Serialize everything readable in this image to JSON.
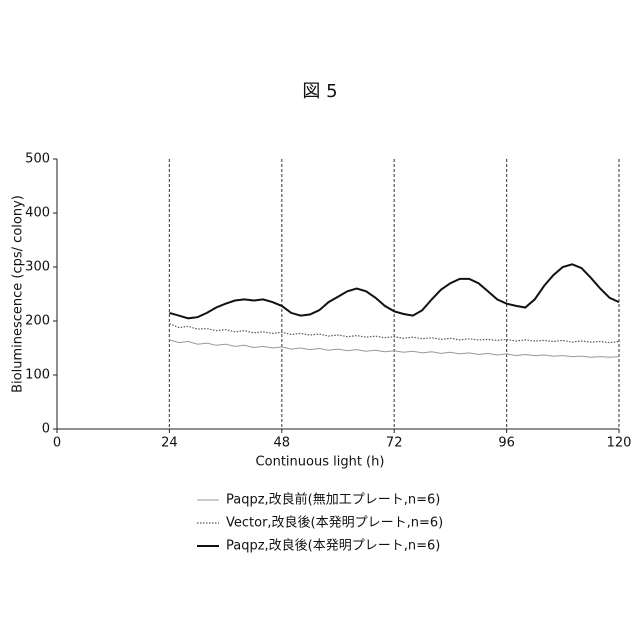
{
  "chart_data": {
    "type": "line",
    "title": "図 5",
    "x_label": "Continuous light (h)",
    "y_label": "Bioluminescence (cps/ colony)",
    "xlim": [
      0,
      120
    ],
    "xticks": [
      0,
      24,
      48,
      72,
      96,
      120
    ],
    "ylim": [
      0,
      500
    ],
    "yticks": [
      0,
      100,
      200,
      300,
      400,
      500
    ],
    "vlines": [
      24,
      48,
      72,
      96,
      120
    ],
    "x": [
      24,
      26,
      28,
      30,
      32,
      34,
      36,
      38,
      40,
      42,
      44,
      46,
      48,
      50,
      52,
      54,
      56,
      58,
      60,
      62,
      64,
      66,
      68,
      70,
      72,
      74,
      76,
      78,
      80,
      82,
      84,
      86,
      88,
      90,
      92,
      94,
      96,
      98,
      100,
      102,
      104,
      106,
      108,
      110,
      112,
      114,
      116,
      118,
      120
    ],
    "series": [
      {
        "name": "Paqpz,改良前(無加工プレート,n=6)",
        "color": "#999999",
        "style": "solid",
        "values": [
          165,
          160,
          162,
          157,
          159,
          155,
          157,
          153,
          155,
          151,
          153,
          150,
          152,
          148,
          150,
          147,
          149,
          146,
          148,
          145,
          147,
          144,
          146,
          143,
          145,
          142,
          144,
          141,
          143,
          140,
          142,
          139,
          141,
          138,
          140,
          137,
          139,
          136,
          138,
          136,
          137,
          135,
          136,
          134,
          135,
          133,
          134,
          133,
          134
        ]
      },
      {
        "name": "Vector,改良後(本発明プレート,n=6)",
        "color": "#555555",
        "style": "dotted",
        "values": [
          195,
          188,
          190,
          185,
          186,
          182,
          184,
          180,
          182,
          178,
          180,
          177,
          179,
          175,
          177,
          174,
          176,
          172,
          174,
          171,
          173,
          170,
          172,
          169,
          171,
          168,
          170,
          167,
          169,
          166,
          168,
          165,
          167,
          165,
          166,
          164,
          166,
          163,
          165,
          163,
          164,
          162,
          164,
          161,
          163,
          161,
          162,
          160,
          162
        ]
      },
      {
        "name": "Paqpz,改良後(本発明プレート,n=6)",
        "color": "#111111",
        "style": "bold",
        "values": [
          215,
          210,
          205,
          207,
          215,
          225,
          232,
          238,
          240,
          238,
          240,
          235,
          228,
          215,
          210,
          212,
          220,
          235,
          245,
          255,
          260,
          255,
          243,
          228,
          218,
          213,
          210,
          220,
          240,
          258,
          270,
          278,
          278,
          270,
          255,
          240,
          232,
          228,
          225,
          240,
          265,
          285,
          300,
          305,
          298,
          280,
          260,
          243,
          235
        ]
      }
    ]
  }
}
